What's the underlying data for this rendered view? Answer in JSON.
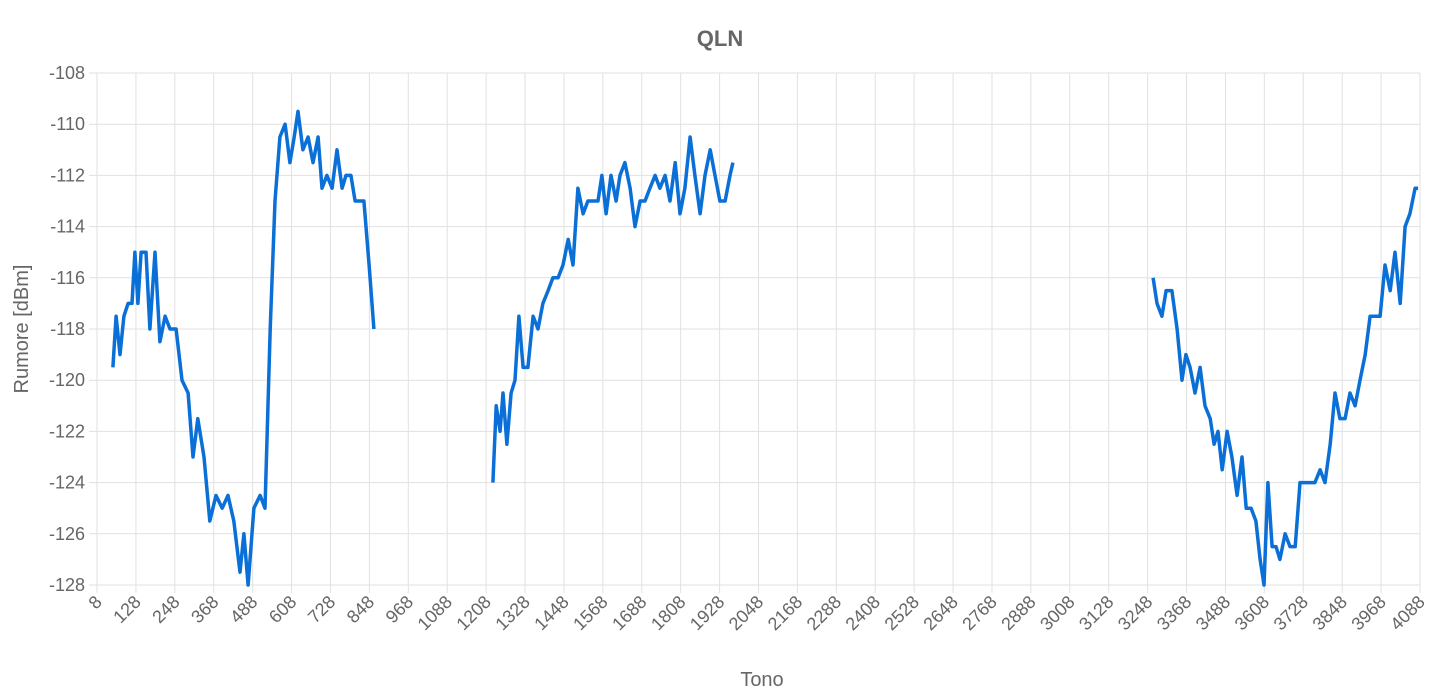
{
  "chart_data": {
    "type": "line",
    "title": "QLN",
    "x_label": "Tono",
    "y_label": "Rumore [dBm]",
    "color": "#0a6fd6",
    "grid": true,
    "xlim": [
      8,
      4088
    ],
    "xticks": [
      8,
      128,
      248,
      368,
      488,
      608,
      728,
      848,
      968,
      1088,
      1208,
      1328,
      1448,
      1568,
      1688,
      1808,
      1928,
      2048,
      2168,
      2288,
      2408,
      2528,
      2648,
      2768,
      2888,
      3008,
      3128,
      3248,
      3368,
      3488,
      3608,
      3728,
      3848,
      3968,
      4088
    ],
    "ylim": [
      -128,
      -108
    ],
    "yticks": [
      -128,
      -126,
      -124,
      -122,
      -120,
      -118,
      -116,
      -114,
      -112,
      -110,
      -108
    ],
    "x": [
      57,
      67,
      79,
      91,
      104,
      116,
      125,
      134,
      144,
      159,
      171,
      187,
      202,
      218,
      233,
      252,
      270,
      289,
      304,
      319,
      338,
      356,
      375,
      394,
      412,
      430,
      449,
      461,
      474,
      492,
      511,
      526,
      542,
      557,
      572,
      588,
      603,
      616,
      628,
      643,
      659,
      674,
      690,
      702,
      717,
      733,
      748,
      764,
      776,
      791,
      804,
      819,
      831,
      847,
      862,
      1000,
      1229,
      1239,
      1251,
      1260,
      1272,
      1285,
      1297,
      1309,
      1322,
      1337,
      1353,
      1368,
      1383,
      1399,
      1414,
      1430,
      1445,
      1461,
      1476,
      1491,
      1507,
      1522,
      1538,
      1553,
      1565,
      1578,
      1593,
      1609,
      1621,
      1636,
      1652,
      1667,
      1683,
      1698,
      1713,
      1729,
      1744,
      1760,
      1775,
      1791,
      1806,
      1821,
      1837,
      1852,
      1868,
      1883,
      1899,
      1914,
      1929,
      1945,
      1960,
      1969,
      2600,
      3265,
      3277,
      3292,
      3305,
      3323,
      3339,
      3354,
      3366,
      3379,
      3394,
      3410,
      3425,
      3441,
      3453,
      3465,
      3478,
      3493,
      3508,
      3524,
      3539,
      3552,
      3567,
      3582,
      3595,
      3607,
      3619,
      3632,
      3644,
      3656,
      3672,
      3687,
      3703,
      3718,
      3733,
      3749,
      3764,
      3780,
      3795,
      3811,
      3826,
      3841,
      3857,
      3872,
      3888,
      3903,
      3919,
      3934,
      3949,
      3965,
      3980,
      3996,
      4011,
      4027,
      4042,
      4057,
      4073,
      4082
    ],
    "values": [
      -119.5,
      -117.5,
      -119,
      -117.5,
      -117,
      -117,
      -115,
      -117,
      -115,
      -115,
      -118,
      -115,
      -118.5,
      -117.5,
      -118,
      -118,
      -120,
      -120.5,
      -123,
      -121.5,
      -123,
      -125.5,
      -124.5,
      -125,
      -124.5,
      -125.5,
      -127.5,
      -126,
      -128,
      -125,
      -124.5,
      -125,
      -118,
      -113,
      -110.5,
      -110,
      -111.5,
      -110.5,
      -109.5,
      -111,
      -110.5,
      -111.5,
      -110.5,
      -112.5,
      -112,
      -112.5,
      -111,
      -112.5,
      -112,
      -112,
      -113,
      -113,
      -113,
      -115.5,
      -118,
      null,
      -124,
      -121,
      -122,
      -120.5,
      -122.5,
      -120.5,
      -120,
      -117.5,
      -119.5,
      -119.5,
      -117.5,
      -118,
      -117,
      -116.5,
      -116,
      -116,
      -115.5,
      -114.5,
      -115.5,
      -112.5,
      -113.5,
      -113,
      -113,
      -113,
      -112,
      -113.5,
      -112,
      -113,
      -112,
      -111.5,
      -112.5,
      -114,
      -113,
      -113,
      -112.5,
      -112,
      -112.5,
      -112,
      -113,
      -111.5,
      -113.5,
      -112.5,
      -110.5,
      -112,
      -113.5,
      -112,
      -111,
      -112,
      -113,
      -113,
      -112,
      -111.5,
      null,
      -116,
      -117,
      -117.5,
      -116.5,
      -116.5,
      -118,
      -120,
      -119,
      -119.5,
      -120.5,
      -119.5,
      -121,
      -121.5,
      -122.5,
      -122,
      -123.5,
      -122,
      -123,
      -124.5,
      -123,
      -125,
      -125,
      -125.5,
      -127,
      -128,
      -124,
      -126.5,
      -126.5,
      -127,
      -126,
      -126.5,
      -126.5,
      -124,
      -124,
      -124,
      -124,
      -123.5,
      -124,
      -122.5,
      -120.5,
      -121.5,
      -121.5,
      -120.5,
      -121,
      -120,
      -119,
      -117.5,
      -117.5,
      -117.5,
      -115.5,
      -116.5,
      -115,
      -117,
      -114,
      -113.5,
      -112.5,
      -112.5
    ]
  }
}
